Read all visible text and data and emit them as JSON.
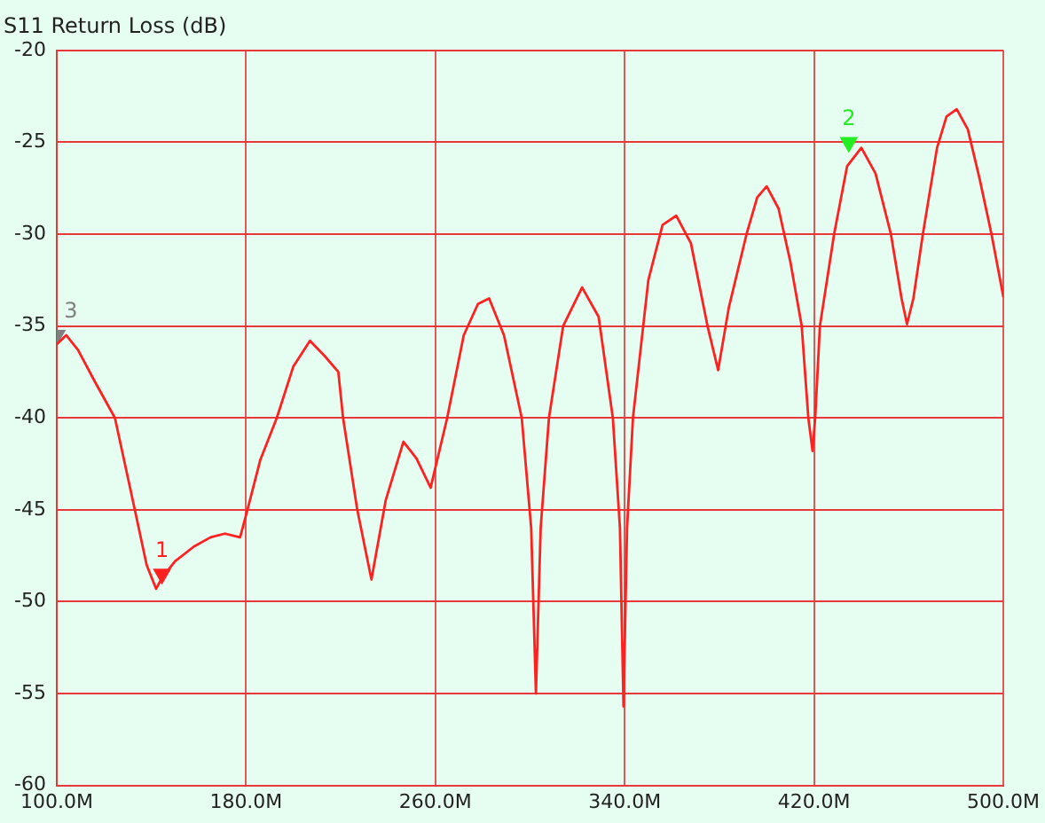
{
  "chart_data": {
    "type": "line",
    "title": "S11 Return Loss (dB)",
    "x": [
      100,
      104,
      109,
      116,
      124.6,
      133,
      138,
      142,
      144.5,
      150,
      158,
      165,
      171,
      177.5,
      180.6,
      186,
      193,
      200,
      207,
      213,
      219,
      221,
      227,
      233,
      239,
      246.5,
      252,
      258,
      265,
      272,
      278,
      282.7,
      289,
      296.5,
      300.5,
      302.5,
      304.5,
      308,
      314,
      322,
      329,
      335,
      338,
      339.5,
      341,
      343.5,
      350,
      356,
      361.8,
      368,
      375,
      379.5,
      384,
      391.5,
      396,
      400,
      405,
      410,
      414.8,
      417.6,
      419.4,
      420.5,
      422.5,
      428.5,
      434,
      440,
      446,
      452.5,
      457,
      459.3,
      462,
      466,
      472,
      476,
      480.3,
      485,
      490,
      495,
      500
    ],
    "series": [
      {
        "color": "#ff2020",
        "values": [
          -36,
          -35.5,
          -36.3,
          -38,
          -40,
          -45,
          -48,
          -49.3,
          -48.7,
          -47.8,
          -47,
          -46.5,
          -46.3,
          -46.5,
          -45,
          -42.3,
          -40,
          -37.2,
          -35.8,
          -36.6,
          -37.5,
          -40,
          -45,
          -48.8,
          -44.5,
          -41.3,
          -42.2,
          -43.8,
          -40,
          -35.5,
          -33.8,
          -33.5,
          -35.5,
          -40,
          -46,
          -55,
          -46,
          -40,
          -35,
          -32.9,
          -34.5,
          -40,
          -46,
          -55.7,
          -46,
          -40,
          -32.5,
          -29.5,
          -29,
          -30.5,
          -35,
          -37.4,
          -34,
          -30,
          -28,
          -27.4,
          -28.6,
          -31.5,
          -35,
          -40,
          -41.8,
          -40,
          -35,
          -30,
          -26.3,
          -25.3,
          -26.7,
          -30,
          -33.5,
          -34.9,
          -33.5,
          -30,
          -25.3,
          -23.6,
          -23.2,
          -24.3,
          -27,
          -30,
          -33.4
        ]
      },
      {
        "type": "scatter",
        "name": "1",
        "marker": "triangle",
        "x": [
          144.5
        ],
        "values": [
          -48.5
        ],
        "color": "#ff2020"
      },
      {
        "type": "scatter",
        "name": "2",
        "marker": "triangle",
        "x": [
          434.7
        ],
        "values": [
          -25
        ],
        "color": "#22ee22"
      },
      {
        "type": "scatter",
        "name": "3",
        "marker": "triangle",
        "x": [
          100
        ],
        "values": [
          -35.5
        ],
        "color": "#808080"
      }
    ],
    "xlim": [
      100,
      500
    ],
    "ylim": [
      -60,
      -20
    ],
    "xticks": [
      {
        "value": 100,
        "label": "100.0M"
      },
      {
        "value": 180,
        "label": "180.0M"
      },
      {
        "value": 260,
        "label": "260.0M"
      },
      {
        "value": 340,
        "label": "340.0M"
      },
      {
        "value": 420,
        "label": "420.0M"
      },
      {
        "value": 500,
        "label": "500.0M"
      }
    ],
    "yticks": [
      -60,
      -55,
      -50,
      -45,
      -40,
      -35,
      -30,
      -25,
      -20
    ],
    "grid": true,
    "marker": "none",
    "line_style": "solid"
  }
}
